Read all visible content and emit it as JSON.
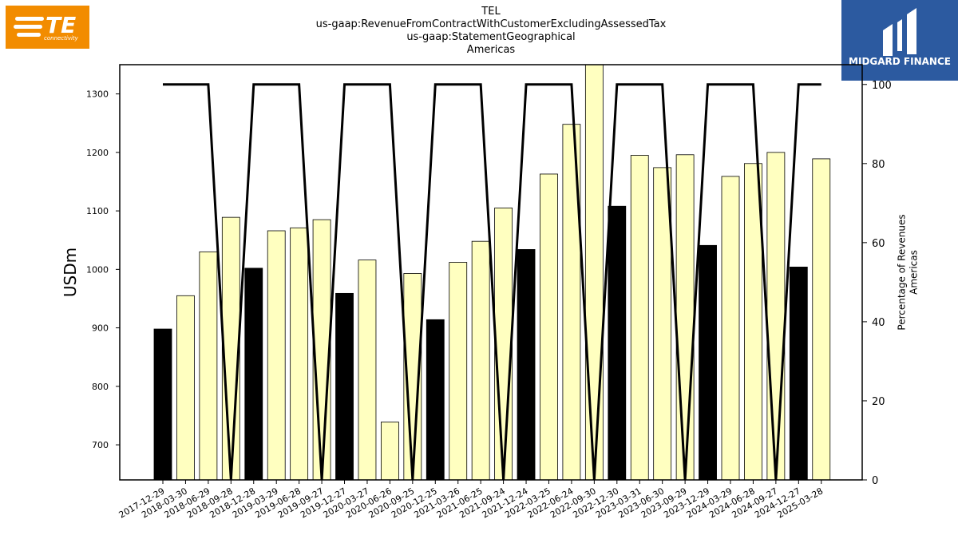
{
  "header": {
    "title_lines": [
      "TEL",
      "us-gaap:RevenueFromContractWithCustomerExcludingAssessedTax",
      "us-gaap:StatementGeographical",
      "Americas"
    ]
  },
  "logos": {
    "te": {
      "text": "TE",
      "sub": "connectivity",
      "color": "#f28c00"
    },
    "midgard": {
      "text": "MIDGARD FINANCE",
      "color": "#2c5aa0"
    }
  },
  "chart_data": {
    "type": "bar",
    "ylabel_left": "USDm",
    "ylabel_right": "Percentage of Revenues\nAmericas",
    "ylim_left": [
      640,
      1350
    ],
    "ylim_right": [
      0,
      100
    ],
    "yticks_left": [
      700,
      800,
      900,
      1000,
      1100,
      1200,
      1300
    ],
    "yticks_right": [
      0,
      20,
      40,
      60,
      80,
      100
    ],
    "categories": [
      "2017-12-29",
      "2018-03-30",
      "2018-06-29",
      "2018-09-28",
      "2018-12-28",
      "2019-03-29",
      "2019-06-28",
      "2019-09-27",
      "2019-12-27",
      "2020-03-27",
      "2020-06-26",
      "2020-09-25",
      "2020-12-25",
      "2021-03-26",
      "2021-06-25",
      "2021-09-24",
      "2021-12-24",
      "2022-03-25",
      "2022-06-24",
      "2022-09-30",
      "2022-12-30",
      "2023-03-31",
      "2023-06-30",
      "2023-09-29",
      "2023-12-29",
      "2024-03-29",
      "2024-06-28",
      "2024-09-27",
      "2024-12-27",
      "2025-03-28"
    ],
    "bar_values": [
      898,
      955,
      1030,
      1089,
      1002,
      1066,
      1071,
      1085,
      959,
      1016,
      739,
      993,
      914,
      1012,
      1048,
      1105,
      1034,
      1163,
      1248,
      1350,
      1108,
      1195,
      1174,
      1196,
      1041,
      1159,
      1181,
      1200,
      1004,
      1189
    ],
    "bar_highlight": [
      true,
      false,
      false,
      false,
      true,
      false,
      false,
      false,
      true,
      false,
      false,
      false,
      true,
      false,
      false,
      false,
      true,
      false,
      false,
      false,
      true,
      false,
      false,
      false,
      true,
      false,
      false,
      false,
      true,
      false
    ],
    "line_values": [
      100,
      100,
      100,
      0,
      100,
      100,
      100,
      0,
      100,
      100,
      100,
      0,
      100,
      100,
      100,
      0,
      100,
      100,
      100,
      0,
      100,
      100,
      100,
      0,
      100,
      100,
      100,
      0,
      100,
      100
    ],
    "colors": {
      "highlight_bar": "#000000",
      "normal_bar": "#ffffc0",
      "bar_edge": "#000000",
      "line": "#000000"
    },
    "grid": false
  }
}
